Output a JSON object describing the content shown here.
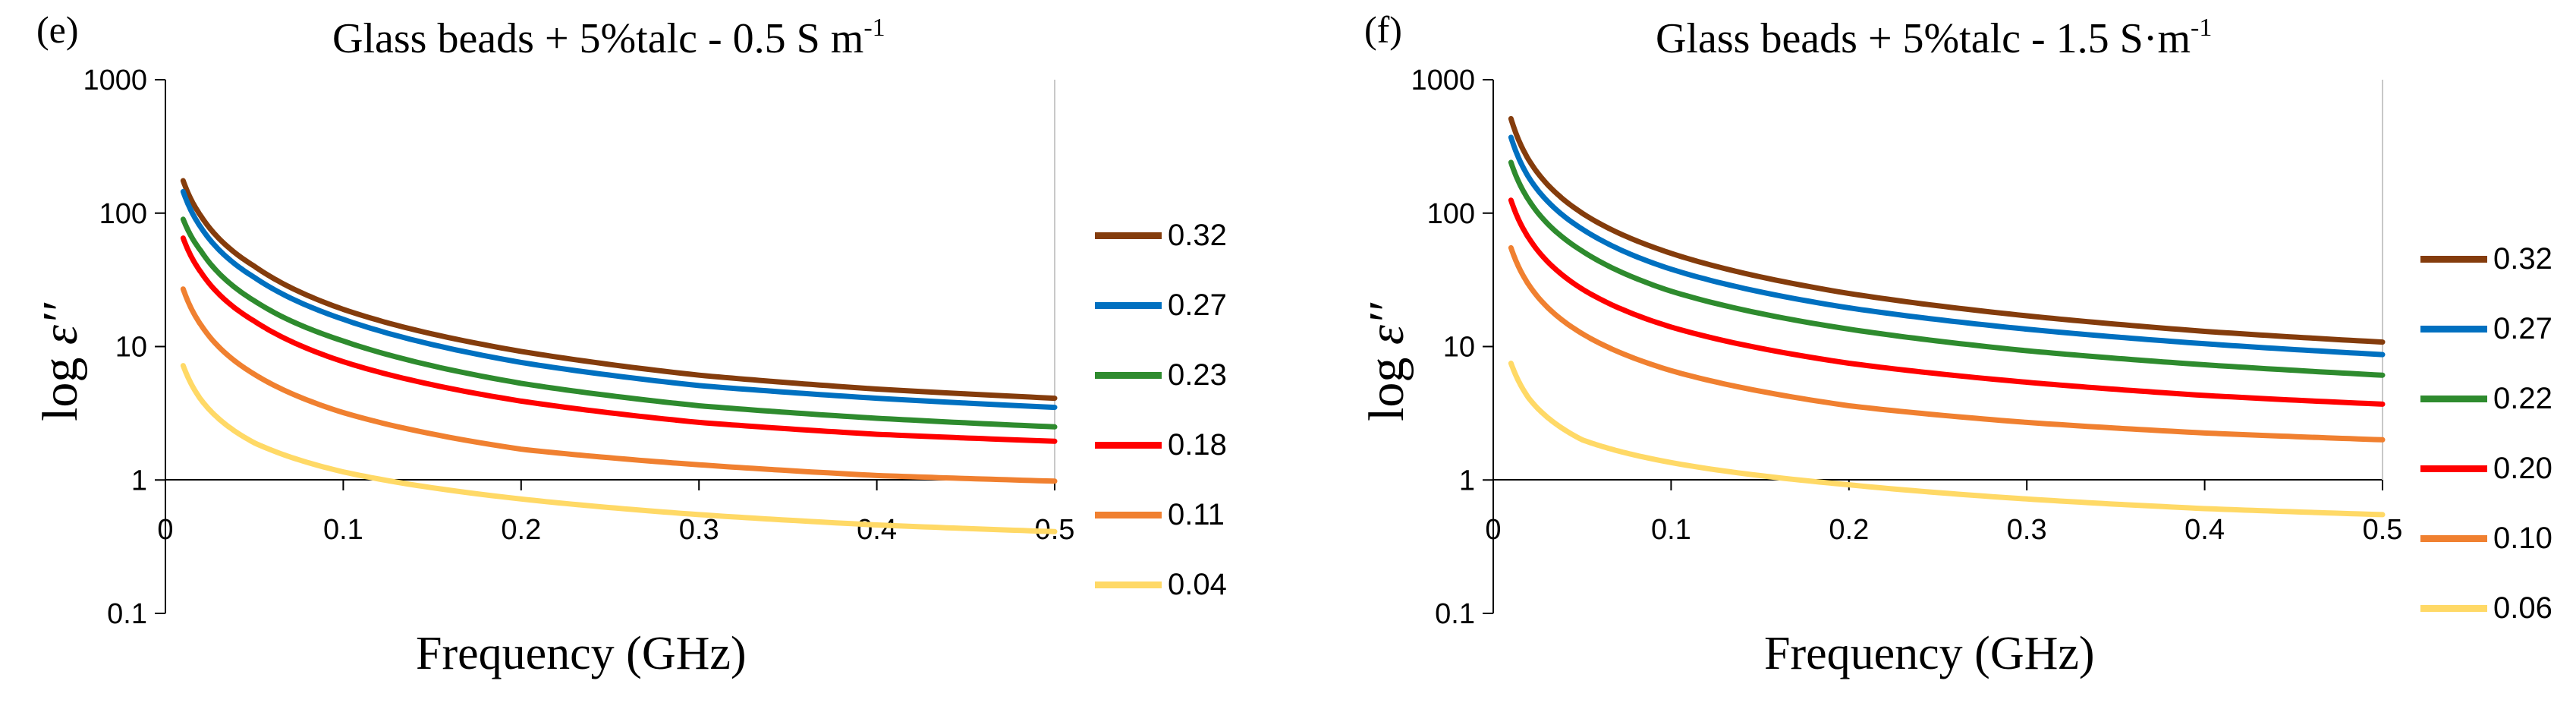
{
  "chart_data": [
    {
      "type": "line",
      "panel": "(e)",
      "title": "Glass beads + 5%talc - 0.5 S m",
      "title_superscript": "-1",
      "xlabel": "Frequency (GHz)",
      "ylabel_text": "log ",
      "ylabel_symbol": "ε′′",
      "yscale": "log",
      "xlim": [
        0,
        0.5
      ],
      "ylim": [
        0.1,
        1000
      ],
      "xticks": [
        "0",
        "0.1",
        "0.2",
        "0.3",
        "0.4",
        "0.5"
      ],
      "yticks": [
        "0.1",
        "1",
        "10",
        "100",
        "1000"
      ],
      "series": [
        {
          "name": "0.32",
          "color": "#843c0c",
          "x": [
            0.01,
            0.02,
            0.05,
            0.1,
            0.2,
            0.3,
            0.4,
            0.5
          ],
          "values": [
            175,
            95,
            40,
            19,
            9.2,
            6.1,
            4.8,
            4.1
          ]
        },
        {
          "name": "0.27",
          "color": "#0070c0",
          "x": [
            0.01,
            0.02,
            0.05,
            0.1,
            0.2,
            0.3,
            0.4,
            0.5
          ],
          "values": [
            145,
            78,
            33,
            16,
            7.6,
            5.1,
            4.1,
            3.5
          ]
        },
        {
          "name": "0.23",
          "color": "#2e8b2e",
          "x": [
            0.01,
            0.02,
            0.05,
            0.1,
            0.2,
            0.3,
            0.4,
            0.5
          ],
          "values": [
            90,
            52,
            22,
            11,
            5.3,
            3.6,
            2.9,
            2.5
          ]
        },
        {
          "name": "0.18",
          "color": "#ff0000",
          "x": [
            0.01,
            0.02,
            0.05,
            0.1,
            0.2,
            0.3,
            0.4,
            0.5
          ],
          "values": [
            65,
            36,
            15.5,
            7.7,
            3.9,
            2.7,
            2.2,
            1.95
          ]
        },
        {
          "name": "0.11",
          "color": "#f08030",
          "x": [
            0.01,
            0.02,
            0.05,
            0.1,
            0.2,
            0.3,
            0.4,
            0.5
          ],
          "values": [
            27,
            14.5,
            6.2,
            3.2,
            1.7,
            1.3,
            1.08,
            0.98
          ]
        },
        {
          "name": "0.04",
          "color": "#ffd966",
          "x": [
            0.01,
            0.02,
            0.05,
            0.1,
            0.2,
            0.3,
            0.4,
            0.5
          ],
          "values": [
            7.2,
            4.0,
            1.9,
            1.15,
            0.72,
            0.55,
            0.46,
            0.41
          ]
        }
      ]
    },
    {
      "type": "line",
      "panel": "(f)",
      "title": "Glass beads + 5%talc - 1.5 S·m",
      "title_superscript": "-1",
      "xlabel": "Frequency (GHz)",
      "ylabel_text": "log ",
      "ylabel_symbol": "ε′′",
      "yscale": "log",
      "xlim": [
        0,
        0.5
      ],
      "ylim": [
        0.1,
        1000
      ],
      "xticks": [
        "0",
        "0.1",
        "0.2",
        "0.3",
        "0.4",
        "0.5"
      ],
      "yticks": [
        "0.1",
        "1",
        "10",
        "100",
        "1000"
      ],
      "series": [
        {
          "name": "0.32",
          "color": "#843c0c",
          "x": [
            0.01,
            0.02,
            0.05,
            0.1,
            0.2,
            0.3,
            0.4,
            0.5
          ],
          "values": [
            510,
            250,
            100,
            50,
            25,
            17,
            13,
            10.8
          ]
        },
        {
          "name": "0.27",
          "color": "#0070c0",
          "x": [
            0.01,
            0.02,
            0.05,
            0.1,
            0.2,
            0.3,
            0.4,
            0.5
          ],
          "values": [
            370,
            185,
            76,
            38,
            19.5,
            13.5,
            10.5,
            8.7
          ]
        },
        {
          "name": "0.22",
          "color": "#2e8b2e",
          "x": [
            0.01,
            0.02,
            0.05,
            0.1,
            0.2,
            0.3,
            0.4,
            0.5
          ],
          "values": [
            240,
            125,
            52,
            26,
            13.5,
            9.3,
            7.3,
            6.1
          ]
        },
        {
          "name": "0.20",
          "color": "#ff0000",
          "x": [
            0.01,
            0.02,
            0.05,
            0.1,
            0.2,
            0.3,
            0.4,
            0.5
          ],
          "values": [
            125,
            65,
            27,
            14,
            7.5,
            5.4,
            4.3,
            3.7
          ]
        },
        {
          "name": "0.10",
          "color": "#f08030",
          "x": [
            0.01,
            0.02,
            0.05,
            0.1,
            0.2,
            0.3,
            0.4,
            0.5
          ],
          "values": [
            55,
            29,
            12.5,
            6.6,
            3.6,
            2.7,
            2.25,
            2.0
          ]
        },
        {
          "name": "0.06",
          "color": "#ffd966",
          "x": [
            0.01,
            0.02,
            0.05,
            0.1,
            0.2,
            0.3,
            0.4,
            0.5
          ],
          "values": [
            7.5,
            4.1,
            2.0,
            1.35,
            0.92,
            0.72,
            0.61,
            0.55
          ]
        }
      ]
    }
  ]
}
